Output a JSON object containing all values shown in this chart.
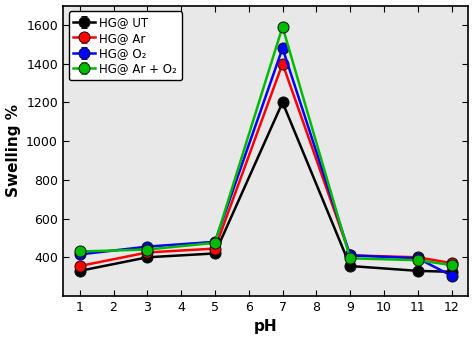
{
  "x": [
    1,
    3,
    5,
    7,
    9,
    11,
    12
  ],
  "series": [
    {
      "label": "HG@ UT",
      "color": "#000000",
      "y": [
        330,
        400,
        420,
        1200,
        355,
        330,
        325
      ],
      "yerr": [
        8,
        8,
        8,
        12,
        8,
        8,
        8
      ]
    },
    {
      "label": "HG@ Ar",
      "color": "#ff0000",
      "y": [
        355,
        425,
        445,
        1400,
        410,
        400,
        370
      ],
      "yerr": [
        8,
        8,
        8,
        12,
        8,
        8,
        8
      ]
    },
    {
      "label": "HG@ O₂",
      "color": "#0000ff",
      "y": [
        415,
        455,
        480,
        1480,
        410,
        395,
        305
      ],
      "yerr": [
        8,
        8,
        8,
        12,
        8,
        8,
        8
      ]
    },
    {
      "label": "HG@ Ar + O₂",
      "color": "#00bb00",
      "y": [
        430,
        440,
        475,
        1590,
        395,
        385,
        360
      ],
      "yerr": [
        8,
        8,
        8,
        18,
        8,
        8,
        8
      ]
    }
  ],
  "xlabel": "pH",
  "ylabel": "Swelling %",
  "xlim": [
    0.5,
    12.5
  ],
  "ylim": [
    200,
    1700
  ],
  "xticks": [
    1,
    2,
    3,
    4,
    5,
    6,
    7,
    8,
    9,
    10,
    11,
    12
  ],
  "yticks": [
    400,
    600,
    800,
    1000,
    1200,
    1400,
    1600
  ],
  "axis_fontsize": 11,
  "tick_fontsize": 9,
  "legend_fontsize": 8.5,
  "linewidth": 1.8,
  "markersize": 8,
  "plot_bg": "#e8e8e8",
  "fig_bg": "#ffffff"
}
